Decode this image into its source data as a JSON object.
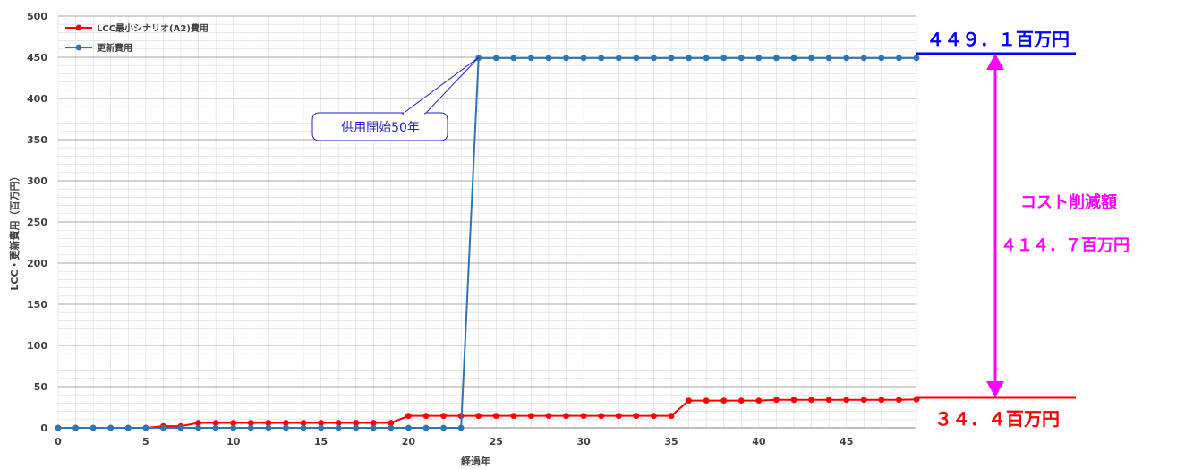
{
  "chart_data": {
    "type": "line",
    "title": "",
    "xlabel": "経過年",
    "ylabel": "LCC・更新費用（百万円）",
    "xlim": [
      0,
      49
    ],
    "ylim": [
      0,
      500
    ],
    "x_ticks": [
      0,
      5,
      10,
      15,
      20,
      25,
      30,
      35,
      40,
      45
    ],
    "y_ticks": [
      0,
      50,
      100,
      150,
      200,
      250,
      300,
      350,
      400,
      450,
      500
    ],
    "grid": true,
    "legend_position": "top-left",
    "x": [
      0,
      1,
      2,
      3,
      4,
      5,
      6,
      7,
      8,
      9,
      10,
      11,
      12,
      13,
      14,
      15,
      16,
      17,
      18,
      19,
      20,
      21,
      22,
      23,
      24,
      25,
      26,
      27,
      28,
      29,
      30,
      31,
      32,
      33,
      34,
      35,
      36,
      37,
      38,
      39,
      40,
      41,
      42,
      43,
      44,
      45,
      46,
      47,
      48,
      49
    ],
    "series": [
      {
        "name": "LCC最小シナリオ(A2)費用",
        "color": "#ff0000",
        "values": [
          0,
          0,
          0,
          0,
          0,
          0,
          2,
          2,
          6,
          6,
          6,
          6,
          6,
          6,
          6,
          6,
          6,
          6,
          6,
          6,
          14.5,
          14.5,
          14.5,
          14.5,
          14.5,
          14.5,
          14.5,
          14.5,
          14.5,
          14.5,
          14.5,
          14.5,
          14.5,
          14.5,
          14.5,
          14.5,
          33,
          33,
          33,
          33,
          33,
          34,
          34,
          34,
          34,
          34,
          34,
          34,
          34,
          34.4
        ]
      },
      {
        "name": "更新費用",
        "color": "#2e75b6",
        "values": [
          0,
          0,
          0,
          0,
          0,
          0,
          0,
          0,
          0,
          0,
          0,
          0,
          0,
          0,
          0,
          0,
          0,
          0,
          0,
          0,
          0,
          0,
          0,
          0,
          449.1,
          449.1,
          449.1,
          449.1,
          449.1,
          449.1,
          449.1,
          449.1,
          449.1,
          449.1,
          449.1,
          449.1,
          449.1,
          449.1,
          449.1,
          449.1,
          449.1,
          449.1,
          449.1,
          449.1,
          449.1,
          449.1,
          449.1,
          449.1,
          449.1,
          449.1
        ]
      }
    ],
    "annotations": {
      "callout": "供用開始50年",
      "top_value": "４４９．１百万円",
      "bottom_value": "３４．４百万円",
      "reduction_label": "コスト削減額",
      "reduction_value": "４１４．７百万円"
    },
    "colors": {
      "top_line": "#0000ff",
      "bottom_line": "#ff0000",
      "arrow": "#ff00ff",
      "callout_border": "#1f1fd0"
    }
  }
}
